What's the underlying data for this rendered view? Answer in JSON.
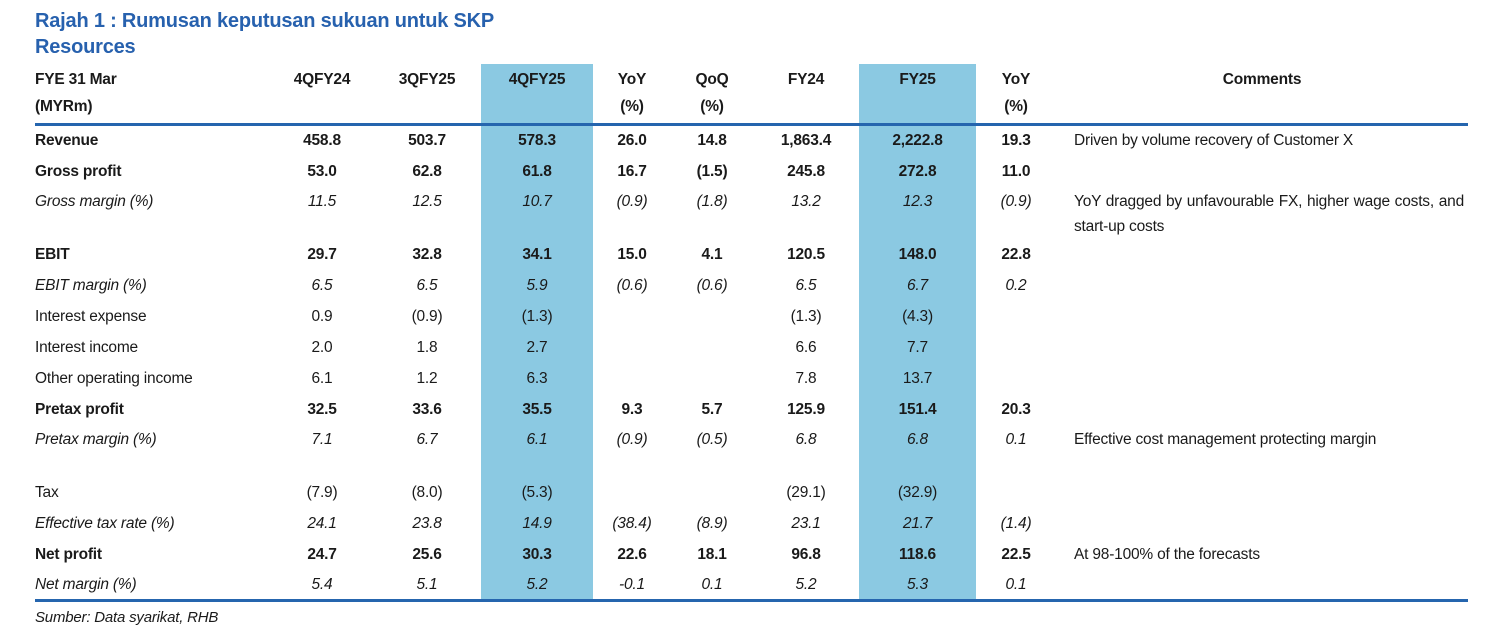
{
  "title": "Rajah 1 : Rumusan keputusan sukuan untuk SKP Resources",
  "colors": {
    "title_blue": "#2761AE",
    "rule_blue": "#2565AE",
    "highlight_blue": "#8BC9E2"
  },
  "table": {
    "header": {
      "label_col": {
        "line1": "FYE 31 Mar",
        "line2": "(MYRm)"
      },
      "cols": [
        {
          "label": "4QFY24",
          "sub": ""
        },
        {
          "label": "3QFY25",
          "sub": ""
        },
        {
          "label": "4QFY25",
          "sub": "",
          "highlight": true
        },
        {
          "label": "YoY",
          "sub": "(%)"
        },
        {
          "label": "QoQ",
          "sub": "(%)"
        },
        {
          "label": "FY24",
          "sub": ""
        },
        {
          "label": "FY25",
          "sub": "",
          "highlight": true
        },
        {
          "label": "YoY",
          "sub": "(%)"
        },
        {
          "label": "Comments",
          "sub": ""
        }
      ]
    },
    "rows": [
      {
        "label": "Revenue",
        "style": "bold",
        "values": [
          "458.8",
          "503.7",
          "578.3",
          "26.0",
          "14.8",
          "1,863.4",
          "2,222.8",
          "19.3"
        ],
        "comment": "Driven by volume recovery of Customer X"
      },
      {
        "label": "Gross profit",
        "style": "bold",
        "values": [
          "53.0",
          "62.8",
          "61.8",
          "16.7",
          "(1.5)",
          "245.8",
          "272.8",
          "11.0"
        ],
        "comment": ""
      },
      {
        "label": "Gross margin (%)",
        "style": "italic",
        "tall": true,
        "values": [
          "11.5",
          "12.5",
          "10.7",
          "(0.9)",
          "(1.8)",
          "13.2",
          "12.3",
          "(0.9)"
        ],
        "comment": "YoY dragged by unfavourable FX, higher wage costs, and start-up costs"
      },
      {
        "label": "EBIT",
        "style": "bold",
        "values": [
          "29.7",
          "32.8",
          "34.1",
          "15.0",
          "4.1",
          "120.5",
          "148.0",
          "22.8"
        ],
        "comment": ""
      },
      {
        "label": "EBIT margin (%)",
        "style": "italic",
        "values": [
          "6.5",
          "6.5",
          "5.9",
          "(0.6)",
          "(0.6)",
          "6.5",
          "6.7",
          "0.2"
        ],
        "comment": ""
      },
      {
        "label": "Interest expense",
        "style": "normal",
        "values": [
          "0.9",
          "(0.9)",
          "(1.3)",
          "",
          "",
          "(1.3)",
          "(4.3)",
          ""
        ],
        "comment": ""
      },
      {
        "label": "Interest income",
        "style": "normal",
        "values": [
          "2.0",
          "1.8",
          "2.7",
          "",
          "",
          "6.6",
          "7.7",
          ""
        ],
        "comment": ""
      },
      {
        "label": "Other operating income",
        "style": "normal",
        "values": [
          "6.1",
          "1.2",
          "6.3",
          "",
          "",
          "7.8",
          "13.7",
          ""
        ],
        "comment": ""
      },
      {
        "label": "Pretax profit",
        "style": "bold",
        "values": [
          "32.5",
          "33.6",
          "35.5",
          "9.3",
          "5.7",
          "125.9",
          "151.4",
          "20.3"
        ],
        "comment": ""
      },
      {
        "label": "Pretax margin (%)",
        "style": "italic",
        "tall": true,
        "values": [
          "7.1",
          "6.7",
          "6.1",
          "(0.9)",
          "(0.5)",
          "6.8",
          "6.8",
          "0.1"
        ],
        "comment": "Effective cost management protecting margin"
      },
      {
        "label": "Tax",
        "style": "normal",
        "values": [
          "(7.9)",
          "(8.0)",
          "(5.3)",
          "",
          "",
          "(29.1)",
          "(32.9)",
          ""
        ],
        "comment": ""
      },
      {
        "label": "Effective tax rate (%)",
        "style": "italic",
        "values": [
          "24.1",
          "23.8",
          "14.9",
          "(38.4)",
          "(8.9)",
          "23.1",
          "21.7",
          "(1.4)"
        ],
        "comment": ""
      },
      {
        "label": "Net profit",
        "style": "bold",
        "values": [
          "24.7",
          "25.6",
          "30.3",
          "22.6",
          "18.1",
          "96.8",
          "118.6",
          "22.5"
        ],
        "comment": "At 98-100% of the forecasts"
      },
      {
        "label": "Net margin (%)",
        "style": "italic",
        "values": [
          "5.4",
          "5.1",
          "5.2",
          "-0.1",
          "0.1",
          "5.2",
          "5.3",
          "0.1"
        ],
        "comment": ""
      }
    ]
  },
  "footer": {
    "source": "Sumber: Data syarikat, RHB"
  }
}
